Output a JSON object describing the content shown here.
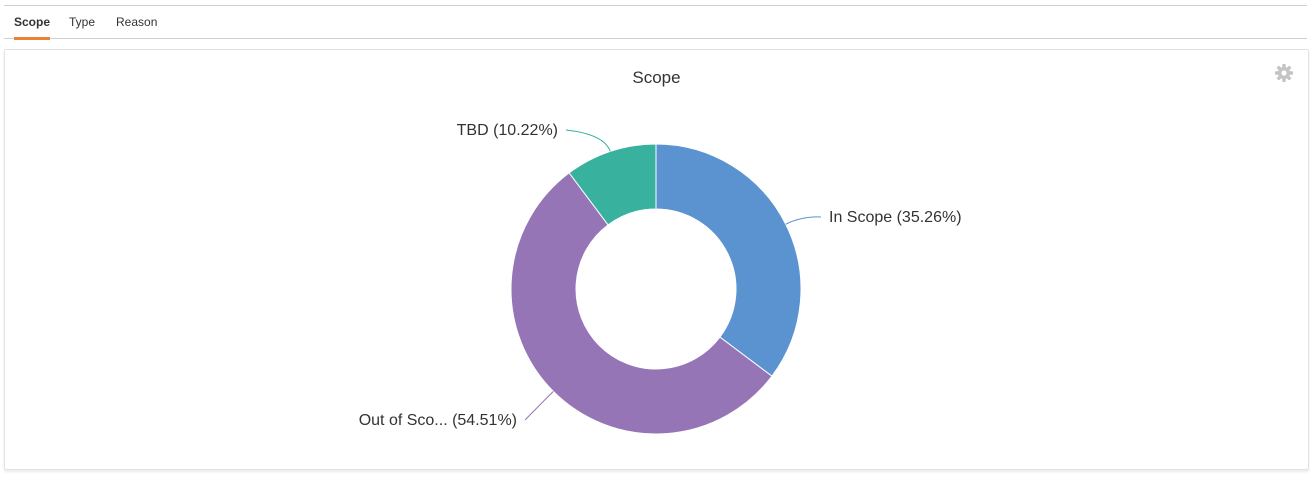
{
  "tabs": [
    {
      "label": "Scope",
      "active": true
    },
    {
      "label": "Type",
      "active": false
    },
    {
      "label": "Reason",
      "active": false
    }
  ],
  "panel": {
    "title": "Scope",
    "settings_icon": "gear-icon"
  },
  "colors": {
    "tab_accent": "#e8833a",
    "in_scope": "#5b92d0",
    "out_of_scope": "#9575b5",
    "tbd": "#38b19e"
  },
  "chart_data": {
    "type": "pie",
    "variant": "donut",
    "title": "Scope",
    "slices": [
      {
        "label": "In Scope",
        "display_label": "In Scope (35.26%)",
        "value": 35.26,
        "color": "#5b92d0"
      },
      {
        "label": "Out of Scope",
        "display_label": "Out of Sco... (54.51%)",
        "value": 54.51,
        "color": "#9575b5"
      },
      {
        "label": "TBD",
        "display_label": "TBD (10.22%)",
        "value": 10.22,
        "color": "#38b19e"
      }
    ],
    "start_angle": "12 o'clock",
    "direction": "clockwise",
    "legend": "none (outside data labels with connector lines)"
  }
}
